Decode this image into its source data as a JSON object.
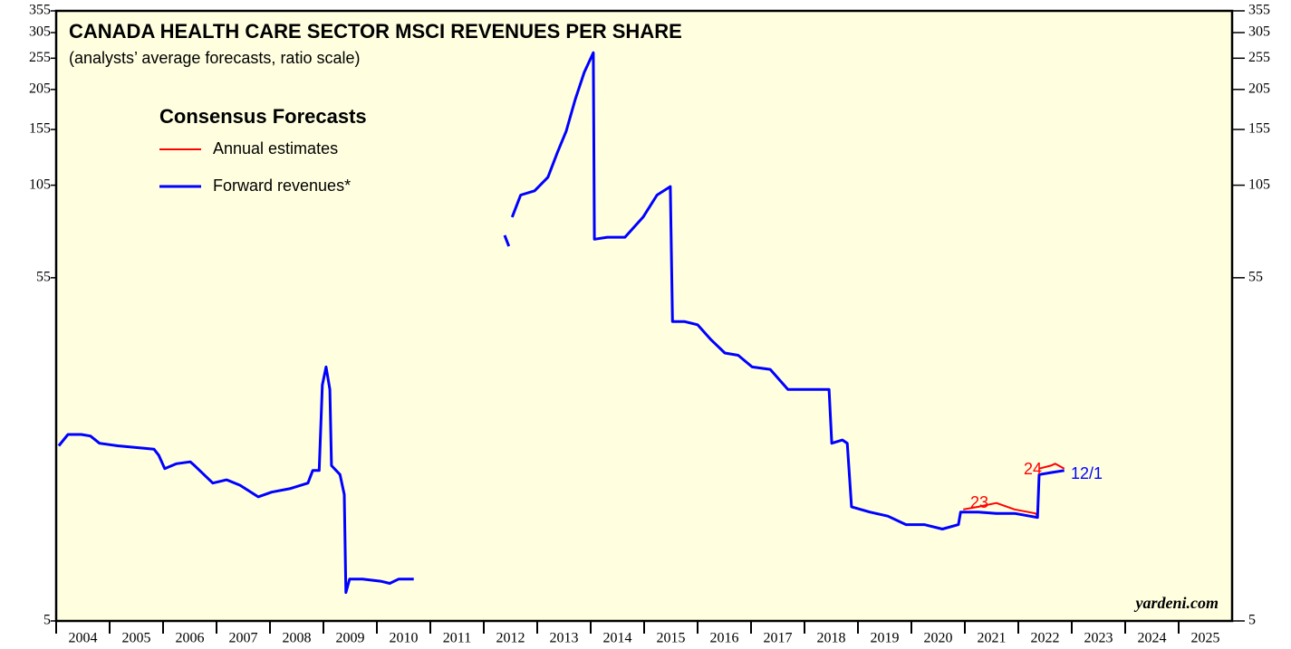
{
  "chart_data": {
    "type": "line",
    "title": "CANADA HEALTH CARE SECTOR MSCI REVENUES PER SHARE",
    "subtitle": "(analysts’ average forecasts, ratio scale)",
    "legend_title": "Consensus Forecasts",
    "legend": "upper left",
    "log_scale": true,
    "ylim": [
      5,
      355
    ],
    "yticks": [
      5,
      55,
      105,
      155,
      205,
      255,
      305,
      355
    ],
    "xlim": [
      2004,
      2026
    ],
    "xticks": [
      2004,
      2005,
      2006,
      2007,
      2008,
      2009,
      2010,
      2011,
      2012,
      2013,
      2014,
      2015,
      2016,
      2017,
      2018,
      2019,
      2020,
      2021,
      2022,
      2023,
      2024,
      2025
    ],
    "annotations": [
      "23",
      "24",
      "12/1"
    ],
    "source": "yardeni.com",
    "series": [
      {
        "name": "Annual estimates",
        "color": "#ff0000",
        "x": [
          2020.97,
          2021.25,
          2021.59,
          2021.93,
          2022.32,
          2022.36,
          null,
          2022.39,
          2022.61,
          2022.69,
          2022.86
        ],
        "values": [
          10.9,
          11.1,
          11.4,
          10.9,
          10.6,
          10.4,
          null,
          14.5,
          14.8,
          15.0,
          14.5
        ]
      },
      {
        "name": "Forward revenues*",
        "color": "#0000ff",
        "x": [
          2004.05,
          2004.22,
          2004.47,
          2004.64,
          2004.81,
          2005.15,
          2005.49,
          2005.83,
          2005.92,
          2006.03,
          2006.25,
          2006.51,
          2006.59,
          2006.93,
          2007.19,
          2007.44,
          2007.78,
          2008.03,
          2008.37,
          2008.71,
          2008.8,
          2008.92,
          2008.98,
          2009.05,
          2009.12,
          2009.15,
          2009.31,
          2009.39,
          2009.42,
          2009.49,
          2009.73,
          2010.07,
          2010.24,
          2010.41,
          2010.69,
          null,
          2012.39,
          2012.47,
          null,
          2012.53,
          2012.69,
          2012.95,
          2013.2,
          2013.37,
          2013.54,
          2013.71,
          2013.88,
          2014.05,
          2014.07,
          2014.31,
          2014.64,
          2014.98,
          2015.24,
          2015.49,
          2015.53,
          2015.75,
          2016.0,
          2016.25,
          2016.51,
          2016.76,
          2017.02,
          2017.36,
          2017.69,
          2018.03,
          2018.46,
          2018.51,
          2018.71,
          2018.8,
          2018.88,
          2019.22,
          2019.56,
          2019.9,
          2020.24,
          2020.58,
          2020.88,
          2020.92,
          2021.25,
          2021.59,
          2021.93,
          2022.36,
          2022.39,
          2022.61,
          2022.86
        ],
        "values": [
          17.0,
          18.4,
          18.4,
          18.2,
          17.3,
          17.0,
          16.8,
          16.6,
          15.9,
          14.5,
          15.0,
          15.2,
          14.8,
          13.1,
          13.4,
          12.9,
          11.9,
          12.3,
          12.6,
          13.1,
          14.3,
          14.3,
          26.0,
          29.5,
          25.2,
          14.8,
          13.9,
          12.1,
          6.1,
          6.7,
          6.7,
          6.6,
          6.5,
          6.7,
          6.7,
          null,
          74,
          68.5,
          null,
          84,
          98,
          101,
          111,
          131,
          153,
          191,
          231,
          265,
          72,
          73,
          73,
          84,
          98,
          104,
          40.5,
          40.5,
          39.6,
          35.7,
          32.5,
          32,
          29.5,
          29,
          25.2,
          25.2,
          25.2,
          17.3,
          17.7,
          17.3,
          11.1,
          10.7,
          10.4,
          9.8,
          9.8,
          9.5,
          9.8,
          10.7,
          10.7,
          10.6,
          10.6,
          10.3,
          13.9,
          14.1,
          14.3
        ]
      }
    ]
  }
}
